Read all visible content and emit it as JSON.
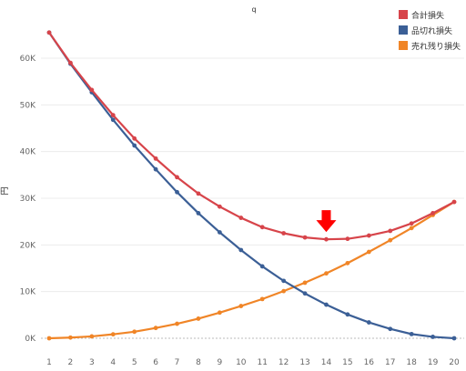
{
  "chart_data": {
    "type": "line",
    "title": "q",
    "xlabel": "",
    "ylabel": "円",
    "x": [
      1,
      2,
      3,
      4,
      5,
      6,
      7,
      8,
      9,
      10,
      11,
      12,
      13,
      14,
      15,
      16,
      17,
      18,
      19,
      20
    ],
    "xlim": [
      1,
      20
    ],
    "ylim": [
      0,
      68000
    ],
    "yticks": [
      0,
      10000,
      20000,
      30000,
      40000,
      50000,
      60000
    ],
    "ytick_labels": [
      "0K",
      "10K",
      "20K",
      "30K",
      "40K",
      "50K",
      "60K"
    ],
    "grid": true,
    "legend_position": "top-right",
    "series": [
      {
        "name": "合計損失",
        "color": "#d7444a",
        "values": [
          65500,
          59000,
          53200,
          47800,
          42800,
          38500,
          34500,
          31000,
          28200,
          25800,
          23800,
          22500,
          21600,
          21200,
          21300,
          22000,
          23000,
          24600,
          26800,
          29200
        ]
      },
      {
        "name": "品切れ損失",
        "color": "#3b5f96",
        "values": [
          65500,
          58800,
          52700,
          46800,
          41300,
          36200,
          31300,
          26800,
          22700,
          18900,
          15400,
          12300,
          9600,
          7200,
          5100,
          3400,
          2000,
          900,
          300,
          0
        ]
      },
      {
        "name": "売れ残り損失",
        "color": "#f08527",
        "values": [
          0,
          150,
          400,
          850,
          1400,
          2200,
          3100,
          4200,
          5500,
          6900,
          8400,
          10100,
          11900,
          13900,
          16100,
          18500,
          21000,
          23600,
          26400,
          29200
        ]
      }
    ],
    "annotations": [
      {
        "type": "arrow-down",
        "x": 14,
        "color": "#ff0000"
      }
    ]
  }
}
